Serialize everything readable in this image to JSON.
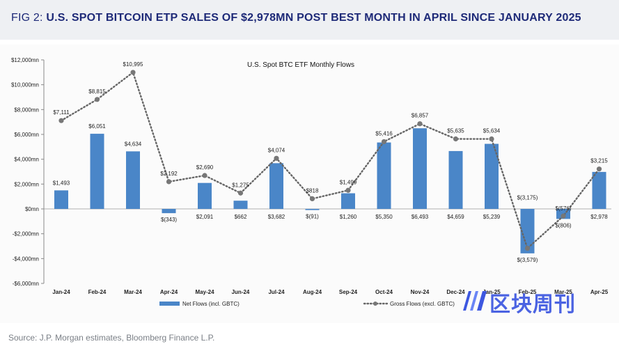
{
  "header": {
    "prefix": "FIG 2: ",
    "title": "U.S. SPOT BITCOIN ETP SALES OF $2,978MN POST BEST MONTH IN APRIL SINCE JANUARY 2025"
  },
  "source": "Source: J.P. Morgan estimates, Bloomberg Finance L.P.",
  "watermark": {
    "text": "区块周刊",
    "icon": "block-weekly-logo-icon"
  },
  "colors": {
    "bar": "#4a86c8",
    "line": "#666666",
    "marker": "#777777",
    "header_text": "#1e2a78",
    "header_bg": "#eef0f3"
  },
  "chart_data": {
    "type": "bar",
    "title": "U.S. Spot BTC ETF Monthly Flows",
    "categories": [
      "Jan-24",
      "Feb-24",
      "Mar-24",
      "Apr-24",
      "May-24",
      "Jun-24",
      "Jul-24",
      "Aug-24",
      "Sep-24",
      "Oct-24",
      "Nov-24",
      "Dec-24",
      "Jan-25",
      "Feb-25",
      "Mar-25",
      "Apr-25"
    ],
    "series": [
      {
        "name": "Net Flows (incl. GBTC)",
        "kind": "bar",
        "values": [
          1493,
          6051,
          4634,
          -343,
          2091,
          662,
          3682,
          -91,
          1260,
          5350,
          6493,
          4659,
          5239,
          -3579,
          -806,
          2978
        ],
        "labels": [
          "$1,493",
          "$6,051",
          "$4,634",
          "$(343)",
          "$2,091",
          "$662",
          "$3,682",
          "$(91)",
          "$1,260",
          "$5,350",
          "$6,493",
          "$4,659",
          "$5,239",
          "$(3,579)",
          "$(806)",
          "$2,978"
        ]
      },
      {
        "name": "Gross Flows (excl. GBTC)",
        "kind": "line",
        "values": [
          7111,
          8815,
          10995,
          2192,
          2690,
          1275,
          4074,
          818,
          1499,
          5416,
          6857,
          5635,
          5634,
          -3175,
          -576,
          3215
        ],
        "labels": [
          "$7,111",
          "$8,815",
          "$10,995",
          "$2,192",
          "$2,690",
          "$1,275",
          "$4,074",
          "$818",
          "$1,499",
          "$5,416",
          "$6,857",
          "$5,635",
          "$5,634",
          "$(3,175)",
          "$(576)",
          "$3,215"
        ]
      }
    ],
    "ylim": [
      -6000,
      12000
    ],
    "yticks": [
      12000,
      10000,
      8000,
      6000,
      4000,
      2000,
      0,
      -2000,
      -4000,
      -6000
    ],
    "ytick_labels": [
      "$12,000mn",
      "$10,000mn",
      "$8,000mn",
      "$6,000mn",
      "$4,000mn",
      "$2,000mn",
      "$0mn",
      "-$2,000mn",
      "-$4,000mn",
      "-$6,000mn"
    ],
    "legend_position": "bottom",
    "grid": false
  }
}
